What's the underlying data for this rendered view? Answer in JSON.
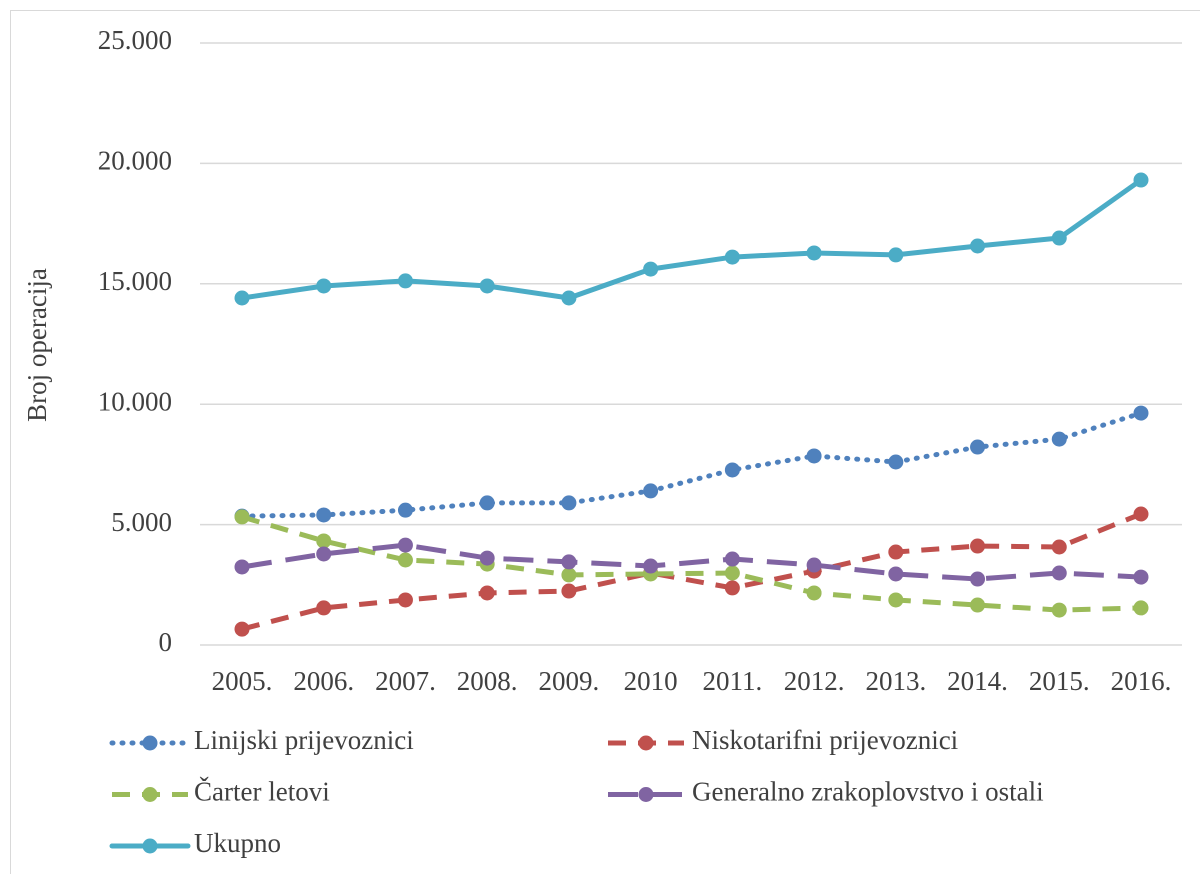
{
  "chart_data": {
    "type": "line",
    "y_label": "Broj operacija",
    "categories": [
      "2005.",
      "2006.",
      "2007.",
      "2008.",
      "2009.",
      "2010",
      "2011.",
      "2012.",
      "2013.",
      "2014.",
      "2015.",
      "2016."
    ],
    "ylim": [
      0,
      25000
    ],
    "yticks": [
      0,
      {
        "value": 5000,
        "label": "5.000"
      },
      {
        "value": 10000,
        "label": "10.000"
      },
      {
        "value": 15000,
        "label": "15.000"
      },
      {
        "value": 20000,
        "label": "20.000"
      },
      {
        "value": 25000,
        "label": "25.000"
      }
    ],
    "grid": true,
    "legend": "bottom",
    "series": [
      {
        "name": "Linijski prijevoznici",
        "color": "#4f81bd",
        "dash": "dotted",
        "values": [
          5350,
          5400,
          5600,
          5900,
          5900,
          6400,
          7270,
          7850,
          7600,
          8220,
          8550,
          9630
        ]
      },
      {
        "name": "Niskotarifni prijevoznici",
        "color": "#c0504d",
        "dash": "dashed",
        "values": [
          660,
          1540,
          1870,
          2160,
          2240,
          2990,
          2370,
          3070,
          3860,
          4110,
          4070,
          5440
        ]
      },
      {
        "name": "Čarter letovi",
        "color": "#9bbb59",
        "dash": "dashed",
        "values": [
          5320,
          4320,
          3530,
          3360,
          2910,
          2950,
          2990,
          2160,
          1870,
          1660,
          1450,
          1540
        ]
      },
      {
        "name": "Generalno zrakoplovstvo i ostali",
        "color": "#8064a2",
        "dash": "long-dash",
        "values": [
          3240,
          3780,
          4150,
          3610,
          3450,
          3280,
          3570,
          3320,
          2950,
          2740,
          2990,
          2820
        ]
      },
      {
        "name": "Ukupno",
        "color": "#4bacc6",
        "dash": "solid",
        "values": [
          14410,
          14910,
          15120,
          14910,
          14410,
          15610,
          16110,
          16280,
          16200,
          16570,
          16900,
          19310
        ]
      }
    ]
  }
}
